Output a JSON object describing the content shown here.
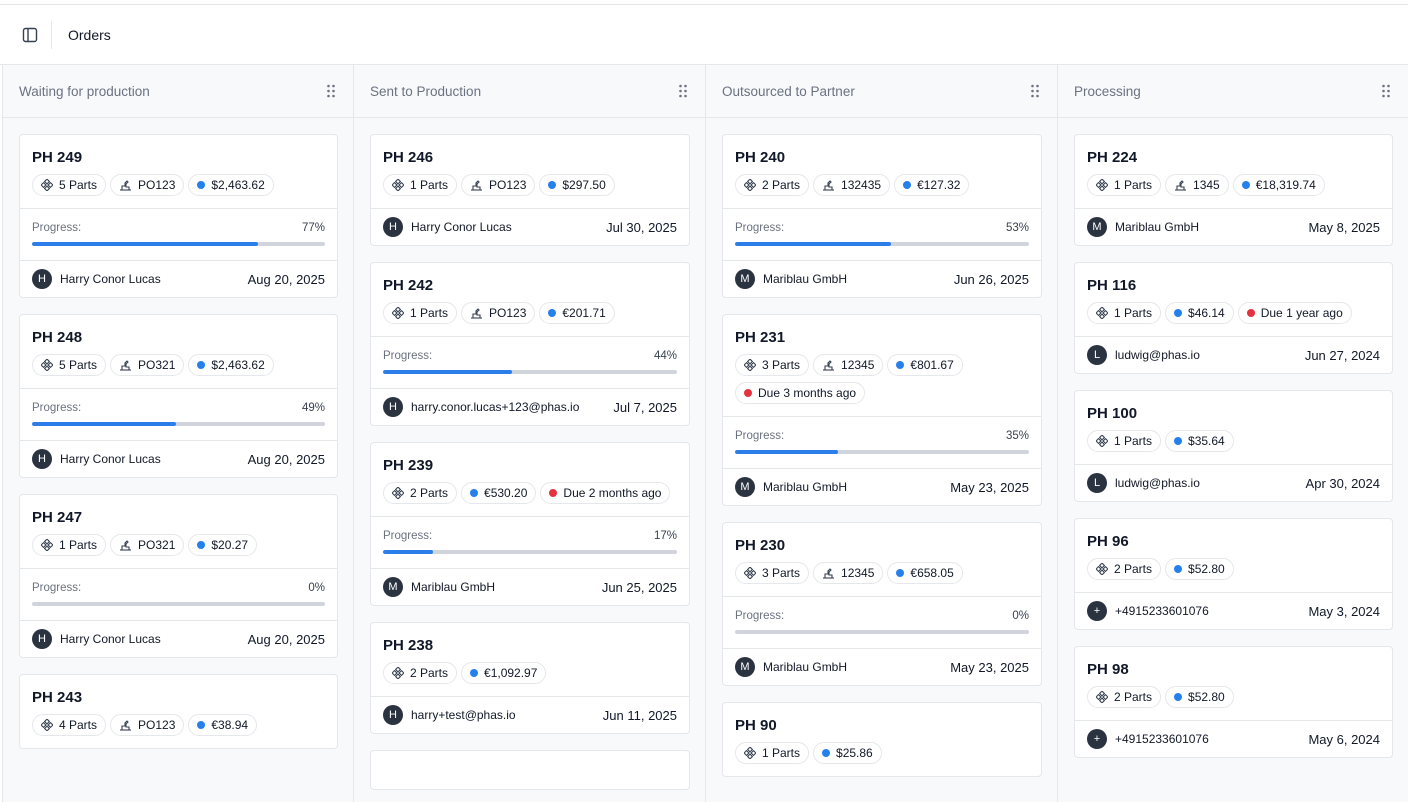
{
  "header": {
    "title": "Orders"
  },
  "icons": {
    "toggle": "sidebar-toggle-icon",
    "grip": "drag-handle-icon",
    "parts": "parts-icon",
    "po": "purchase-order-icon"
  },
  "colors": {
    "accent": "#2b7de9",
    "price_dot": "#2680eb",
    "due_dot": "#e5333e",
    "avatar": "#2b3340"
  },
  "columns": [
    {
      "title": "Waiting for production",
      "cards": [
        {
          "id": "PH 249",
          "chips": [
            {
              "type": "parts",
              "text": "5 Parts"
            },
            {
              "type": "po",
              "text": "PO123"
            },
            {
              "type": "price",
              "text": "$2,463.62"
            }
          ],
          "progress": {
            "label": "Progress:",
            "value": "77%",
            "fraction": 0.77
          },
          "avatar": "H",
          "name": "Harry Conor Lucas",
          "date": "Aug 20, 2025"
        },
        {
          "id": "PH 248",
          "chips": [
            {
              "type": "parts",
              "text": "5 Parts"
            },
            {
              "type": "po",
              "text": "PO321"
            },
            {
              "type": "price",
              "text": "$2,463.62"
            }
          ],
          "progress": {
            "label": "Progress:",
            "value": "49%",
            "fraction": 0.49
          },
          "avatar": "H",
          "name": "Harry Conor Lucas",
          "date": "Aug 20, 2025"
        },
        {
          "id": "PH 247",
          "chips": [
            {
              "type": "parts",
              "text": "1 Parts"
            },
            {
              "type": "po",
              "text": "PO321"
            },
            {
              "type": "price",
              "text": "$20.27"
            }
          ],
          "progress": {
            "label": "Progress:",
            "value": "0%",
            "fraction": 0
          },
          "avatar": "H",
          "name": "Harry Conor Lucas",
          "date": "Aug 20, 2025"
        },
        {
          "id": "PH 243",
          "chips": [
            {
              "type": "parts",
              "text": "4 Parts"
            },
            {
              "type": "po",
              "text": "PO123"
            },
            {
              "type": "price",
              "text": "€38.94"
            }
          ]
        }
      ]
    },
    {
      "title": "Sent to Production",
      "cards": [
        {
          "id": "PH 246",
          "chips": [
            {
              "type": "parts",
              "text": "1 Parts"
            },
            {
              "type": "po",
              "text": "PO123"
            },
            {
              "type": "price",
              "text": "$297.50"
            }
          ],
          "avatar": "H",
          "name": "Harry Conor Lucas",
          "date": "Jul 30, 2025"
        },
        {
          "id": "PH 242",
          "chips": [
            {
              "type": "parts",
              "text": "1 Parts"
            },
            {
              "type": "po",
              "text": "PO123"
            },
            {
              "type": "price",
              "text": "€201.71"
            }
          ],
          "progress": {
            "label": "Progress:",
            "value": "44%",
            "fraction": 0.44
          },
          "avatar": "H",
          "name": "harry.conor.lucas+123@phas.io",
          "date": "Jul 7, 2025"
        },
        {
          "id": "PH 239",
          "chips": [
            {
              "type": "parts",
              "text": "2 Parts"
            },
            {
              "type": "price",
              "text": "€530.20"
            },
            {
              "type": "due",
              "text": "Due 2 months ago"
            }
          ],
          "progress": {
            "label": "Progress:",
            "value": "17%",
            "fraction": 0.17
          },
          "avatar": "M",
          "name": "Mariblau GmbH",
          "date": "Jun 25, 2025"
        },
        {
          "id": "PH 238",
          "chips": [
            {
              "type": "parts",
              "text": "2 Parts"
            },
            {
              "type": "price",
              "text": "€1,092.97"
            }
          ],
          "avatar": "H",
          "name": "harry+test@phas.io",
          "date": "Jun 11, 2025"
        },
        {
          "id": "",
          "chips": []
        }
      ]
    },
    {
      "title": "Outsourced to Partner",
      "cards": [
        {
          "id": "PH 240",
          "chips": [
            {
              "type": "parts",
              "text": "2 Parts"
            },
            {
              "type": "po",
              "text": "132435"
            },
            {
              "type": "price",
              "text": "€127.32"
            }
          ],
          "progress": {
            "label": "Progress:",
            "value": "53%",
            "fraction": 0.53
          },
          "avatar": "M",
          "name": "Mariblau GmbH",
          "date": "Jun 26, 2025"
        },
        {
          "id": "PH 231",
          "chips": [
            {
              "type": "parts",
              "text": "3 Parts"
            },
            {
              "type": "po",
              "text": "12345"
            },
            {
              "type": "price",
              "text": "€801.67"
            },
            {
              "type": "due",
              "text": "Due 3 months ago"
            }
          ],
          "progress": {
            "label": "Progress:",
            "value": "35%",
            "fraction": 0.35
          },
          "avatar": "M",
          "name": "Mariblau GmbH",
          "date": "May 23, 2025"
        },
        {
          "id": "PH 230",
          "chips": [
            {
              "type": "parts",
              "text": "3 Parts"
            },
            {
              "type": "po",
              "text": "12345"
            },
            {
              "type": "price",
              "text": "€658.05"
            }
          ],
          "progress": {
            "label": "Progress:",
            "value": "0%",
            "fraction": 0
          },
          "avatar": "M",
          "name": "Mariblau GmbH",
          "date": "May 23, 2025"
        },
        {
          "id": "PH 90",
          "chips": [
            {
              "type": "parts",
              "text": "1 Parts"
            },
            {
              "type": "price",
              "text": "$25.86"
            }
          ]
        }
      ]
    },
    {
      "title": "Processing",
      "cards": [
        {
          "id": "PH 224",
          "chips": [
            {
              "type": "parts",
              "text": "1 Parts"
            },
            {
              "type": "po",
              "text": "1345"
            },
            {
              "type": "price",
              "text": "€18,319.74"
            }
          ],
          "avatar": "M",
          "name": "Mariblau GmbH",
          "date": "May 8, 2025"
        },
        {
          "id": "PH 116",
          "chips": [
            {
              "type": "parts",
              "text": "1 Parts"
            },
            {
              "type": "price",
              "text": "$46.14"
            },
            {
              "type": "due",
              "text": "Due 1 year ago"
            }
          ],
          "avatar": "L",
          "name": "ludwig@phas.io",
          "date": "Jun 27, 2024"
        },
        {
          "id": "PH 100",
          "chips": [
            {
              "type": "parts",
              "text": "1 Parts"
            },
            {
              "type": "price",
              "text": "$35.64"
            }
          ],
          "avatar": "L",
          "name": "ludwig@phas.io",
          "date": "Apr 30, 2024"
        },
        {
          "id": "PH 96",
          "chips": [
            {
              "type": "parts",
              "text": "2 Parts"
            },
            {
              "type": "price",
              "text": "$52.80"
            }
          ],
          "avatar": "+",
          "name": "+4915233601076",
          "date": "May 3, 2024"
        },
        {
          "id": "PH 98",
          "chips": [
            {
              "type": "parts",
              "text": "2 Parts"
            },
            {
              "type": "price",
              "text": "$52.80"
            }
          ],
          "avatar": "+",
          "name": "+4915233601076",
          "date": "May 6, 2024"
        }
      ]
    }
  ]
}
